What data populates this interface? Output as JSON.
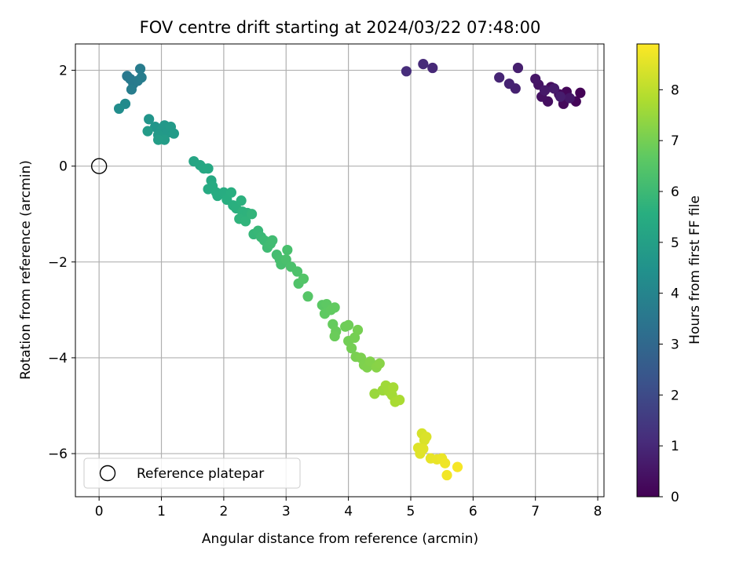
{
  "chart_data": {
    "type": "scatter",
    "title": "FOV centre drift starting at 2024/03/22 07:48:00",
    "xlabel": "Angular distance from reference (arcmin)",
    "ylabel": "Rotation from reference (arcmin)",
    "xlim": [
      -0.38,
      8.1
    ],
    "ylim": [
      -6.9,
      2.55
    ],
    "xticks": [
      0,
      1,
      2,
      3,
      4,
      5,
      6,
      7,
      8
    ],
    "yticks": [
      2,
      0,
      -2,
      -4,
      -6
    ],
    "ytick_labels": [
      "2",
      "0",
      "−2",
      "−4",
      "−6"
    ],
    "grid": true,
    "legend": {
      "position": "lower-left",
      "entries": [
        "Reference platepar"
      ]
    },
    "reference_point": {
      "x": 0,
      "y": 0
    },
    "colorbar": {
      "label": "Hours from first FF file",
      "min": 0,
      "max": 8.9,
      "ticks": [
        0,
        1,
        2,
        3,
        4,
        5,
        6,
        7,
        8
      ],
      "colormap": "viridis"
    },
    "points": [
      {
        "x": 7.72,
        "y": 1.53,
        "t": 0.05
      },
      {
        "x": 7.65,
        "y": 1.35,
        "t": 0.1
      },
      {
        "x": 7.5,
        "y": 1.55,
        "t": 0.15
      },
      {
        "x": 7.45,
        "y": 1.3,
        "t": 0.2
      },
      {
        "x": 7.38,
        "y": 1.5,
        "t": 0.25
      },
      {
        "x": 7.25,
        "y": 1.65,
        "t": 0.3
      },
      {
        "x": 7.2,
        "y": 1.35,
        "t": 0.35
      },
      {
        "x": 7.1,
        "y": 1.45,
        "t": 0.4
      },
      {
        "x": 7.05,
        "y": 1.7,
        "t": 0.45
      },
      {
        "x": 7.0,
        "y": 1.82,
        "t": 0.5
      },
      {
        "x": 7.55,
        "y": 1.42,
        "t": 0.55
      },
      {
        "x": 7.15,
        "y": 1.58,
        "t": 0.6
      },
      {
        "x": 7.3,
        "y": 1.62,
        "t": 0.65
      },
      {
        "x": 7.4,
        "y": 1.45,
        "t": 0.7
      },
      {
        "x": 6.72,
        "y": 2.05,
        "t": 0.75
      },
      {
        "x": 6.68,
        "y": 1.62,
        "t": 0.8
      },
      {
        "x": 6.58,
        "y": 1.72,
        "t": 0.85
      },
      {
        "x": 6.42,
        "y": 1.85,
        "t": 0.9
      },
      {
        "x": 5.35,
        "y": 2.05,
        "t": 1.0
      },
      {
        "x": 5.2,
        "y": 2.13,
        "t": 1.05
      },
      {
        "x": 4.93,
        "y": 1.98,
        "t": 1.1
      },
      {
        "x": 0.45,
        "y": 1.88,
        "t": 3.55
      },
      {
        "x": 0.5,
        "y": 1.82,
        "t": 3.6
      },
      {
        "x": 0.55,
        "y": 1.72,
        "t": 3.62
      },
      {
        "x": 0.62,
        "y": 1.78,
        "t": 3.65
      },
      {
        "x": 0.66,
        "y": 2.03,
        "t": 3.7
      },
      {
        "x": 0.68,
        "y": 1.85,
        "t": 3.72
      },
      {
        "x": 0.52,
        "y": 1.6,
        "t": 3.75
      },
      {
        "x": 0.42,
        "y": 1.3,
        "t": 4.2
      },
      {
        "x": 0.32,
        "y": 1.2,
        "t": 4.3
      },
      {
        "x": 0.8,
        "y": 0.98,
        "t": 4.6
      },
      {
        "x": 0.9,
        "y": 0.82,
        "t": 4.65
      },
      {
        "x": 1.0,
        "y": 0.75,
        "t": 4.7
      },
      {
        "x": 1.05,
        "y": 0.85,
        "t": 4.72
      },
      {
        "x": 1.1,
        "y": 0.7,
        "t": 4.75
      },
      {
        "x": 1.15,
        "y": 0.82,
        "t": 4.78
      },
      {
        "x": 0.95,
        "y": 0.65,
        "t": 4.8
      },
      {
        "x": 1.2,
        "y": 0.68,
        "t": 4.82
      },
      {
        "x": 0.78,
        "y": 0.73,
        "t": 4.85
      },
      {
        "x": 1.05,
        "y": 0.55,
        "t": 4.88
      },
      {
        "x": 0.95,
        "y": 0.55,
        "t": 4.9
      },
      {
        "x": 1.52,
        "y": 0.1,
        "t": 5.2
      },
      {
        "x": 1.62,
        "y": 0.02,
        "t": 5.25
      },
      {
        "x": 1.68,
        "y": -0.05,
        "t": 5.3
      },
      {
        "x": 1.75,
        "y": -0.05,
        "t": 5.32
      },
      {
        "x": 1.8,
        "y": -0.3,
        "t": 5.35
      },
      {
        "x": 1.82,
        "y": -0.42,
        "t": 5.4
      },
      {
        "x": 1.75,
        "y": -0.48,
        "t": 5.42
      },
      {
        "x": 1.88,
        "y": -0.55,
        "t": 5.45
      },
      {
        "x": 1.9,
        "y": -0.62,
        "t": 5.48
      },
      {
        "x": 2.0,
        "y": -0.55,
        "t": 5.5
      },
      {
        "x": 2.05,
        "y": -0.7,
        "t": 5.55
      },
      {
        "x": 2.12,
        "y": -0.55,
        "t": 5.58
      },
      {
        "x": 2.15,
        "y": -0.82,
        "t": 5.6
      },
      {
        "x": 2.2,
        "y": -0.88,
        "t": 5.62
      },
      {
        "x": 2.28,
        "y": -0.72,
        "t": 5.65
      },
      {
        "x": 2.3,
        "y": -0.95,
        "t": 5.68
      },
      {
        "x": 2.38,
        "y": -0.98,
        "t": 5.7
      },
      {
        "x": 2.25,
        "y": -1.1,
        "t": 5.72
      },
      {
        "x": 2.35,
        "y": -1.15,
        "t": 5.75
      },
      {
        "x": 2.45,
        "y": -1.0,
        "t": 5.78
      },
      {
        "x": 2.48,
        "y": -1.42,
        "t": 5.85
      },
      {
        "x": 2.55,
        "y": -1.35,
        "t": 5.9
      },
      {
        "x": 2.6,
        "y": -1.48,
        "t": 5.95
      },
      {
        "x": 2.65,
        "y": -1.55,
        "t": 6.0
      },
      {
        "x": 2.7,
        "y": -1.7,
        "t": 6.05
      },
      {
        "x": 2.75,
        "y": -1.62,
        "t": 6.08
      },
      {
        "x": 2.78,
        "y": -1.55,
        "t": 6.1
      },
      {
        "x": 2.85,
        "y": -1.85,
        "t": 6.15
      },
      {
        "x": 2.9,
        "y": -1.95,
        "t": 6.2
      },
      {
        "x": 2.92,
        "y": -2.05,
        "t": 6.22
      },
      {
        "x": 3.02,
        "y": -1.75,
        "t": 6.25
      },
      {
        "x": 3.0,
        "y": -1.95,
        "t": 6.28
      },
      {
        "x": 3.08,
        "y": -2.1,
        "t": 6.3
      },
      {
        "x": 3.18,
        "y": -2.2,
        "t": 6.35
      },
      {
        "x": 3.2,
        "y": -2.45,
        "t": 6.4
      },
      {
        "x": 3.28,
        "y": -2.35,
        "t": 6.45
      },
      {
        "x": 3.35,
        "y": -2.72,
        "t": 6.5
      },
      {
        "x": 3.58,
        "y": -2.9,
        "t": 6.6
      },
      {
        "x": 3.65,
        "y": -2.88,
        "t": 6.65
      },
      {
        "x": 3.62,
        "y": -3.08,
        "t": 6.68
      },
      {
        "x": 3.72,
        "y": -3.0,
        "t": 6.7
      },
      {
        "x": 3.78,
        "y": -2.95,
        "t": 6.72
      },
      {
        "x": 3.75,
        "y": -3.3,
        "t": 6.78
      },
      {
        "x": 3.8,
        "y": -3.45,
        "t": 6.82
      },
      {
        "x": 3.78,
        "y": -3.55,
        "t": 6.85
      },
      {
        "x": 3.95,
        "y": -3.35,
        "t": 6.9
      },
      {
        "x": 4.0,
        "y": -3.32,
        "t": 6.92
      },
      {
        "x": 4.0,
        "y": -3.65,
        "t": 6.95
      },
      {
        "x": 4.05,
        "y": -3.8,
        "t": 6.98
      },
      {
        "x": 4.1,
        "y": -3.58,
        "t": 7.0
      },
      {
        "x": 4.15,
        "y": -3.42,
        "t": 7.02
      },
      {
        "x": 4.12,
        "y": -3.98,
        "t": 7.05
      },
      {
        "x": 4.2,
        "y": -4.0,
        "t": 7.1
      },
      {
        "x": 4.25,
        "y": -4.15,
        "t": 7.12
      },
      {
        "x": 4.3,
        "y": -4.2,
        "t": 7.15
      },
      {
        "x": 4.35,
        "y": -4.08,
        "t": 7.18
      },
      {
        "x": 4.45,
        "y": -4.2,
        "t": 7.25
      },
      {
        "x": 4.5,
        "y": -4.12,
        "t": 7.28
      },
      {
        "x": 4.42,
        "y": -4.75,
        "t": 7.5
      },
      {
        "x": 4.55,
        "y": -4.68,
        "t": 7.55
      },
      {
        "x": 4.6,
        "y": -4.58,
        "t": 7.6
      },
      {
        "x": 4.65,
        "y": -4.7,
        "t": 7.62
      },
      {
        "x": 4.7,
        "y": -4.78,
        "t": 7.65
      },
      {
        "x": 4.72,
        "y": -4.62,
        "t": 7.68
      },
      {
        "x": 4.75,
        "y": -4.92,
        "t": 7.72
      },
      {
        "x": 4.82,
        "y": -4.88,
        "t": 7.75
      },
      {
        "x": 5.18,
        "y": -5.58,
        "t": 8.35
      },
      {
        "x": 5.22,
        "y": -5.72,
        "t": 8.4
      },
      {
        "x": 5.25,
        "y": -5.65,
        "t": 8.42
      },
      {
        "x": 5.12,
        "y": -5.88,
        "t": 8.45
      },
      {
        "x": 5.15,
        "y": -6.0,
        "t": 8.48
      },
      {
        "x": 5.2,
        "y": -5.9,
        "t": 8.5
      },
      {
        "x": 5.32,
        "y": -6.1,
        "t": 8.6
      },
      {
        "x": 5.42,
        "y": -6.12,
        "t": 8.62
      },
      {
        "x": 5.5,
        "y": -6.1,
        "t": 8.65
      },
      {
        "x": 5.55,
        "y": -6.2,
        "t": 8.7
      },
      {
        "x": 5.58,
        "y": -6.45,
        "t": 8.75
      },
      {
        "x": 5.75,
        "y": -6.28,
        "t": 8.8
      }
    ]
  }
}
